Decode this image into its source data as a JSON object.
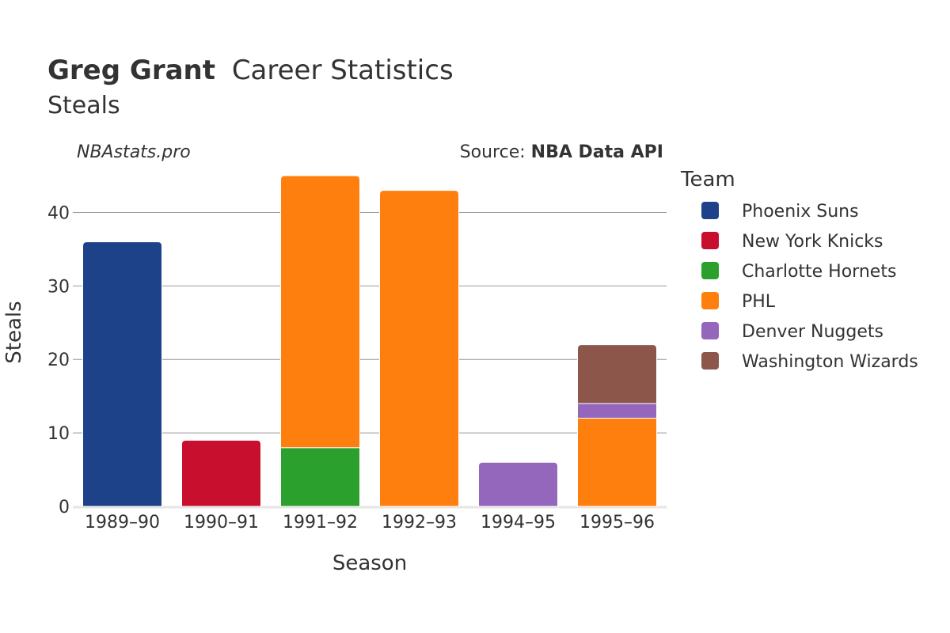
{
  "chart_data": {
    "type": "bar",
    "stacked": true,
    "title_bold": "Greg Grant",
    "title_rest": "Career Statistics",
    "subtitle": "Steals",
    "watermark": "NBAstats.pro",
    "source_prefix": "Source: ",
    "source_bold": "NBA Data API",
    "xlabel": "Season",
    "ylabel": "Steals",
    "ylim": [
      0,
      45
    ],
    "yticks": [
      0,
      10,
      20,
      30,
      40
    ],
    "grid": true,
    "legend_title": "Team",
    "legend_position": "right",
    "categories": [
      "1989–90",
      "1990–91",
      "1991–92",
      "1992–93",
      "1994–95",
      "1995–96"
    ],
    "series": [
      {
        "name": "Phoenix Suns",
        "color": "#1d428a",
        "values": [
          36,
          0,
          0,
          0,
          0,
          0
        ]
      },
      {
        "name": "New York Knicks",
        "color": "#c8102e",
        "values": [
          0,
          9,
          0,
          0,
          0,
          0
        ]
      },
      {
        "name": "Charlotte Hornets",
        "color": "#2ca02c",
        "values": [
          0,
          0,
          8,
          0,
          0,
          0
        ]
      },
      {
        "name": "PHL",
        "color": "#ff7f0e",
        "values": [
          0,
          0,
          37,
          43,
          0,
          12
        ]
      },
      {
        "name": "Denver Nuggets",
        "color": "#9467bd",
        "values": [
          0,
          0,
          0,
          0,
          6,
          2
        ]
      },
      {
        "name": "Washington Wizards",
        "color": "#8c564b",
        "values": [
          0,
          0,
          0,
          0,
          0,
          8
        ]
      }
    ]
  }
}
